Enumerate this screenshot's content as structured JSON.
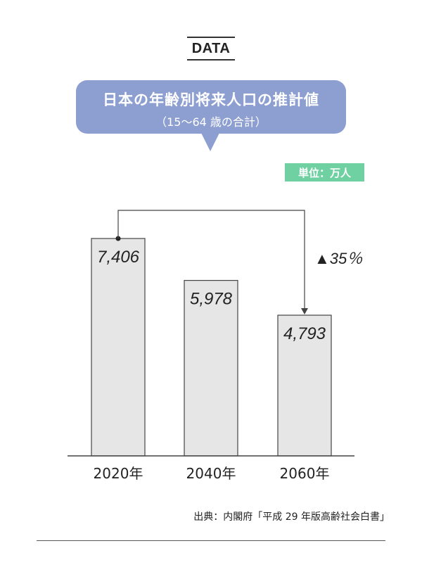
{
  "header": {
    "tag": "DATA"
  },
  "title": {
    "main": "日本の年齢別将来人口の推計値",
    "sub": "（15〜64 歳の合計）"
  },
  "unit": "単位：万人",
  "chart_data": {
    "type": "bar",
    "categories": [
      "2020年",
      "2040年",
      "2060年"
    ],
    "values": [
      7406,
      5978,
      4793
    ],
    "value_labels": [
      "7,406",
      "5,978",
      "4,793"
    ],
    "ylim": [
      0,
      8700
    ],
    "grid": false,
    "annotation": {
      "from": "2020年",
      "to": "2060年",
      "text": "▲35％"
    }
  },
  "source": "出典：内閣府「平成 29 年版高齢社会白書」",
  "colors": {
    "bubble": "#8d9fd1",
    "badge": "#6fd0a1",
    "bar_fill": "#e6e6e6",
    "bar_stroke": "#444444"
  }
}
